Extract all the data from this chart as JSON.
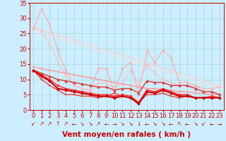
{
  "xlabel": "Vent moyen/en rafales ( km/h )",
  "bg_color": "#cceeff",
  "grid_color": "#aadddd",
  "xlim": [
    -0.5,
    23.5
  ],
  "ylim": [
    0,
    35
  ],
  "yticks": [
    0,
    5,
    10,
    15,
    20,
    25,
    30,
    35
  ],
  "xticks": [
    0,
    1,
    2,
    3,
    4,
    5,
    6,
    7,
    8,
    9,
    10,
    11,
    12,
    13,
    14,
    15,
    16,
    17,
    18,
    19,
    20,
    21,
    22,
    23
  ],
  "lines": [
    {
      "x": [
        0,
        1,
        2,
        3,
        4,
        5,
        6,
        7,
        8,
        9,
        10,
        11,
        12,
        13,
        14,
        15,
        16,
        17,
        18,
        19,
        20,
        21,
        22,
        23
      ],
      "y": [
        26.5,
        33,
        28,
        19.5,
        13,
        8,
        7,
        6.5,
        13.5,
        13.5,
        6,
        13.5,
        15.5,
        5,
        19.5,
        15.5,
        19.5,
        17,
        9,
        9,
        8,
        7,
        7,
        7.5
      ],
      "color": "#ffaaaa",
      "lw": 0.8,
      "marker": "o",
      "ms": 2.0,
      "zorder": 2
    },
    {
      "x": [
        0,
        1,
        2,
        3,
        4,
        5,
        6,
        7,
        8,
        9,
        10,
        11,
        12,
        13,
        14,
        15,
        16,
        17,
        18,
        19,
        20,
        21,
        22,
        23
      ],
      "y": [
        27,
        26,
        21.5,
        16,
        11,
        8,
        7,
        6.5,
        9,
        8.5,
        7.5,
        8.5,
        13,
        8.5,
        15,
        12,
        10,
        9,
        8,
        8,
        7.5,
        7,
        7,
        7.5
      ],
      "color": "#ffbbbb",
      "lw": 0.8,
      "marker": "o",
      "ms": 2.0,
      "zorder": 2
    },
    {
      "x": [
        0,
        23
      ],
      "y": [
        27,
        8
      ],
      "color": "#ffcccc",
      "lw": 0.8,
      "marker": null,
      "ms": 0,
      "zorder": 1
    },
    {
      "x": [
        0,
        23
      ],
      "y": [
        26,
        7
      ],
      "color": "#ffdddd",
      "lw": 0.8,
      "marker": null,
      "ms": 0,
      "zorder": 1
    },
    {
      "x": [
        0,
        1,
        2,
        3,
        4,
        5,
        6,
        7,
        8,
        9,
        10,
        11,
        12,
        13,
        14,
        15,
        16,
        17,
        18,
        19,
        20,
        21,
        22,
        23
      ],
      "y": [
        14,
        13.5,
        13,
        12.5,
        12,
        11.5,
        11,
        10.5,
        10,
        9.5,
        9,
        8.5,
        8,
        7.5,
        7,
        7,
        6.5,
        6.5,
        6,
        6,
        5.5,
        5.5,
        5,
        5
      ],
      "color": "#ff9999",
      "lw": 1.0,
      "marker": "s",
      "ms": 1.8,
      "zorder": 3
    },
    {
      "x": [
        0,
        1,
        2,
        3,
        4,
        5,
        6,
        7,
        8,
        9,
        10,
        11,
        12,
        13,
        14,
        15,
        16,
        17,
        18,
        19,
        20,
        21,
        22,
        23
      ],
      "y": [
        13,
        12,
        11,
        10,
        9.5,
        9,
        8.5,
        8,
        7.5,
        7.5,
        6.5,
        7,
        7,
        5.5,
        9.5,
        9,
        9,
        8,
        8,
        8,
        7,
        6,
        6,
        5
      ],
      "color": "#dd3333",
      "lw": 1.0,
      "marker": "^",
      "ms": 2.5,
      "zorder": 3
    },
    {
      "x": [
        0,
        1,
        2,
        3,
        4,
        5,
        6,
        7,
        8,
        9,
        10,
        11,
        12,
        13,
        14,
        15,
        16,
        17,
        18,
        19,
        20,
        21,
        22,
        23
      ],
      "y": [
        13,
        11.5,
        10,
        8,
        7,
        6.5,
        6,
        5.5,
        5,
        5,
        4.5,
        5,
        4.5,
        2.5,
        6.5,
        6,
        7,
        6,
        5,
        5,
        4,
        4,
        4.5,
        4
      ],
      "color": "#ff2222",
      "lw": 1.0,
      "marker": "o",
      "ms": 2.0,
      "zorder": 3
    },
    {
      "x": [
        0,
        1,
        2,
        3,
        4,
        5,
        6,
        7,
        8,
        9,
        10,
        11,
        12,
        13,
        14,
        15,
        16,
        17,
        18,
        19,
        20,
        21,
        22,
        23
      ],
      "y": [
        13,
        11,
        9.5,
        7,
        6.5,
        6,
        5.5,
        5,
        4.5,
        4.5,
        4,
        4.5,
        4,
        2,
        6,
        5.5,
        6.5,
        5.5,
        4.5,
        4.5,
        4,
        4,
        4,
        4
      ],
      "color": "#cc0000",
      "lw": 1.5,
      "marker": "D",
      "ms": 2.0,
      "zorder": 4
    },
    {
      "x": [
        0,
        1,
        2,
        3,
        4,
        5,
        6,
        7,
        8,
        9,
        10,
        11,
        12,
        13,
        14,
        15,
        16,
        17,
        18,
        19,
        20,
        21,
        22,
        23
      ],
      "y": [
        13,
        10,
        8,
        6.5,
        5,
        5,
        4.5,
        4.5,
        4,
        4.5,
        5.5,
        4.5,
        4,
        2.5,
        5,
        5,
        5.5,
        4.5,
        4,
        4.5,
        4,
        4,
        4,
        4
      ],
      "color": "#ee4444",
      "lw": 1.0,
      "marker": "s",
      "ms": 1.8,
      "zorder": 3
    }
  ],
  "arrows": [
    "↙",
    "↗",
    "↗",
    "↑",
    "↗",
    "←",
    "↘",
    "↘",
    "↗",
    "←",
    "→",
    "↘",
    "↘",
    "↓",
    "←",
    "↘",
    "↘",
    "←",
    "↖",
    "←",
    "↘",
    "↙",
    "←",
    "→"
  ],
  "xlabel_color": "#cc0000",
  "xlabel_fontsize": 7.5,
  "tick_color": "#cc0000",
  "tick_fontsize": 6,
  "arrow_fontsize": 5.5
}
